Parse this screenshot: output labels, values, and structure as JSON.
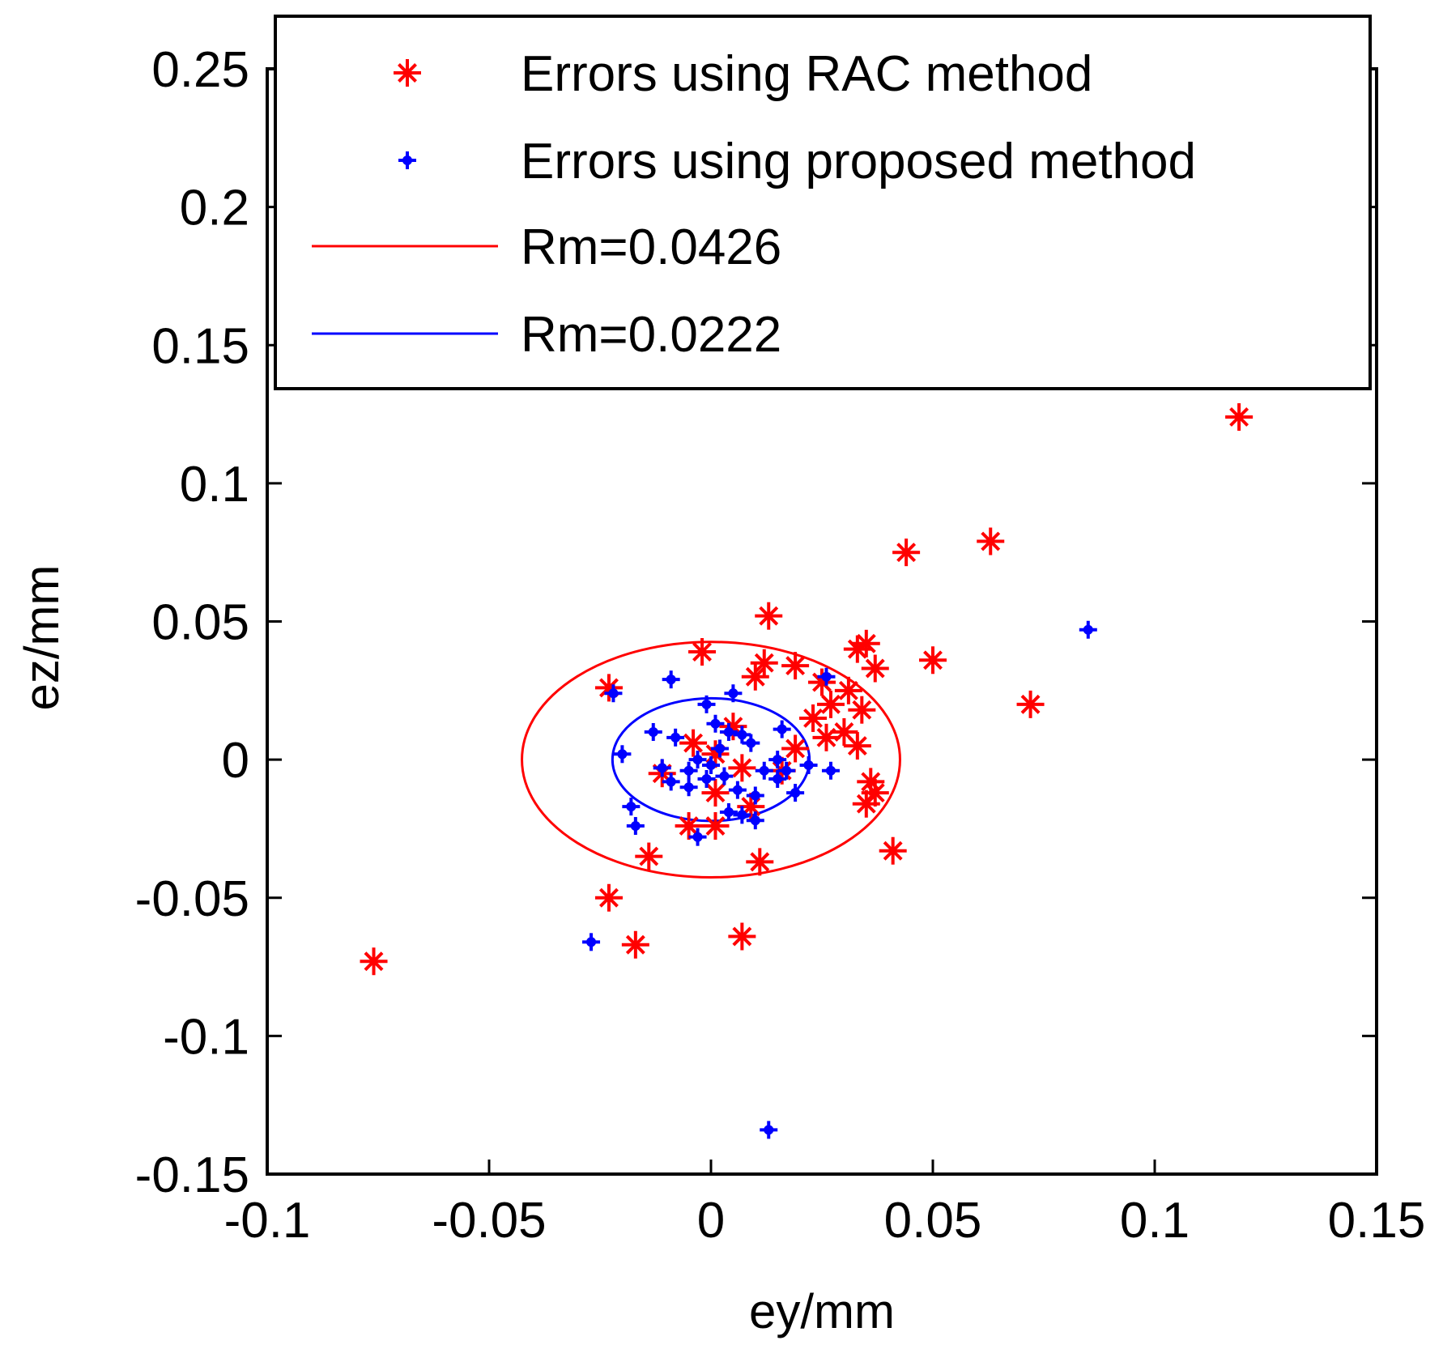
{
  "chart_data": {
    "type": "scatter",
    "title": "",
    "xlabel": "ey/mm",
    "ylabel": "ez/mm",
    "xlim": [
      -0.1,
      0.15
    ],
    "ylim": [
      -0.15,
      0.25
    ],
    "xticks": [
      {
        "value": -0.1,
        "label": "-0.1"
      },
      {
        "value": -0.05,
        "label": "-0.05"
      },
      {
        "value": 0,
        "label": "0"
      },
      {
        "value": 0.05,
        "label": "0.05"
      },
      {
        "value": 0.1,
        "label": "0.1"
      },
      {
        "value": 0.15,
        "label": "0.15"
      }
    ],
    "yticks": [
      {
        "value": -0.15,
        "label": "-0.15"
      },
      {
        "value": -0.1,
        "label": "-0.1"
      },
      {
        "value": -0.05,
        "label": "-0.05"
      },
      {
        "value": 0,
        "label": "0"
      },
      {
        "value": 0.05,
        "label": "0.05"
      },
      {
        "value": 0.1,
        "label": "0.1"
      },
      {
        "value": 0.15,
        "label": "0.15"
      },
      {
        "value": 0.2,
        "label": "0.2"
      },
      {
        "value": 0.25,
        "label": "0.25"
      }
    ],
    "grid": false,
    "legend_position": "top-right",
    "series": [
      {
        "name": "Errors using RAC method",
        "marker": "star",
        "color": "#ff0000",
        "points": [
          [
            0.119,
            0.124
          ],
          [
            0.063,
            0.079
          ],
          [
            0.044,
            0.075
          ],
          [
            0.013,
            0.052
          ],
          [
            0.05,
            0.036
          ],
          [
            0.072,
            0.02
          ],
          [
            0.035,
            0.042
          ],
          [
            0.037,
            0.033
          ],
          [
            0.033,
            0.04
          ],
          [
            -0.002,
            0.039
          ],
          [
            0.012,
            0.035
          ],
          [
            0.019,
            0.034
          ],
          [
            0.01,
            0.03
          ],
          [
            -0.023,
            0.026
          ],
          [
            0.025,
            0.028
          ],
          [
            0.031,
            0.025
          ],
          [
            0.027,
            0.02
          ],
          [
            0.034,
            0.018
          ],
          [
            0.023,
            0.015
          ],
          [
            0.03,
            0.01
          ],
          [
            0.026,
            0.008
          ],
          [
            0.033,
            0.005
          ],
          [
            0.019,
            0.004
          ],
          [
            0.005,
            0.012
          ],
          [
            0.001,
            0.002
          ],
          [
            -0.004,
            0.006
          ],
          [
            0.016,
            -0.004
          ],
          [
            0.036,
            -0.008
          ],
          [
            0.037,
            -0.012
          ],
          [
            0.035,
            -0.016
          ],
          [
            -0.011,
            -0.005
          ],
          [
            0.007,
            -0.003
          ],
          [
            0.001,
            -0.012
          ],
          [
            0.009,
            -0.017
          ],
          [
            -0.005,
            -0.024
          ],
          [
            0.001,
            -0.024
          ],
          [
            -0.014,
            -0.035
          ],
          [
            0.011,
            -0.037
          ],
          [
            0.041,
            -0.033
          ],
          [
            -0.023,
            -0.05
          ],
          [
            0.007,
            -0.064
          ],
          [
            -0.017,
            -0.067
          ],
          [
            -0.076,
            -0.073
          ]
        ]
      },
      {
        "name": "Errors using proposed method",
        "marker": "dot",
        "color": "#0000ff",
        "points": [
          [
            0.085,
            0.047
          ],
          [
            0.013,
            -0.134
          ],
          [
            -0.027,
            -0.066
          ],
          [
            -0.022,
            0.024
          ],
          [
            -0.009,
            0.029
          ],
          [
            0.026,
            0.03
          ],
          [
            0.005,
            0.024
          ],
          [
            -0.001,
            0.02
          ],
          [
            0.016,
            0.011
          ],
          [
            -0.013,
            0.01
          ],
          [
            -0.008,
            0.008
          ],
          [
            0.004,
            0.01
          ],
          [
            0.007,
            0.009
          ],
          [
            0.009,
            0.006
          ],
          [
            -0.02,
            0.002
          ],
          [
            -0.003,
            0.0
          ],
          [
            0.0,
            -0.002
          ],
          [
            0.002,
            0.004
          ],
          [
            -0.005,
            -0.004
          ],
          [
            0.003,
            -0.006
          ],
          [
            0.015,
            0.0
          ],
          [
            0.017,
            -0.004
          ],
          [
            0.022,
            -0.002
          ],
          [
            0.027,
            -0.004
          ],
          [
            -0.011,
            -0.003
          ],
          [
            -0.009,
            -0.008
          ],
          [
            -0.005,
            -0.01
          ],
          [
            0.006,
            -0.011
          ],
          [
            0.01,
            -0.013
          ],
          [
            0.019,
            -0.012
          ],
          [
            0.015,
            -0.007
          ],
          [
            -0.018,
            -0.017
          ],
          [
            0.007,
            -0.02
          ],
          [
            0.01,
            -0.022
          ],
          [
            -0.017,
            -0.024
          ],
          [
            -0.003,
            -0.028
          ],
          [
            0.004,
            -0.019
          ],
          [
            -0.001,
            -0.007
          ],
          [
            0.012,
            -0.004
          ],
          [
            0.001,
            0.013
          ]
        ]
      },
      {
        "name": "Rm=0.0426",
        "type": "circle",
        "color": "#ff0000",
        "center": [
          0,
          0
        ],
        "radius": 0.0426
      },
      {
        "name": "Rm=0.0222",
        "type": "circle",
        "color": "#0000ff",
        "center": [
          0,
          0
        ],
        "radius": 0.0222
      }
    ]
  }
}
